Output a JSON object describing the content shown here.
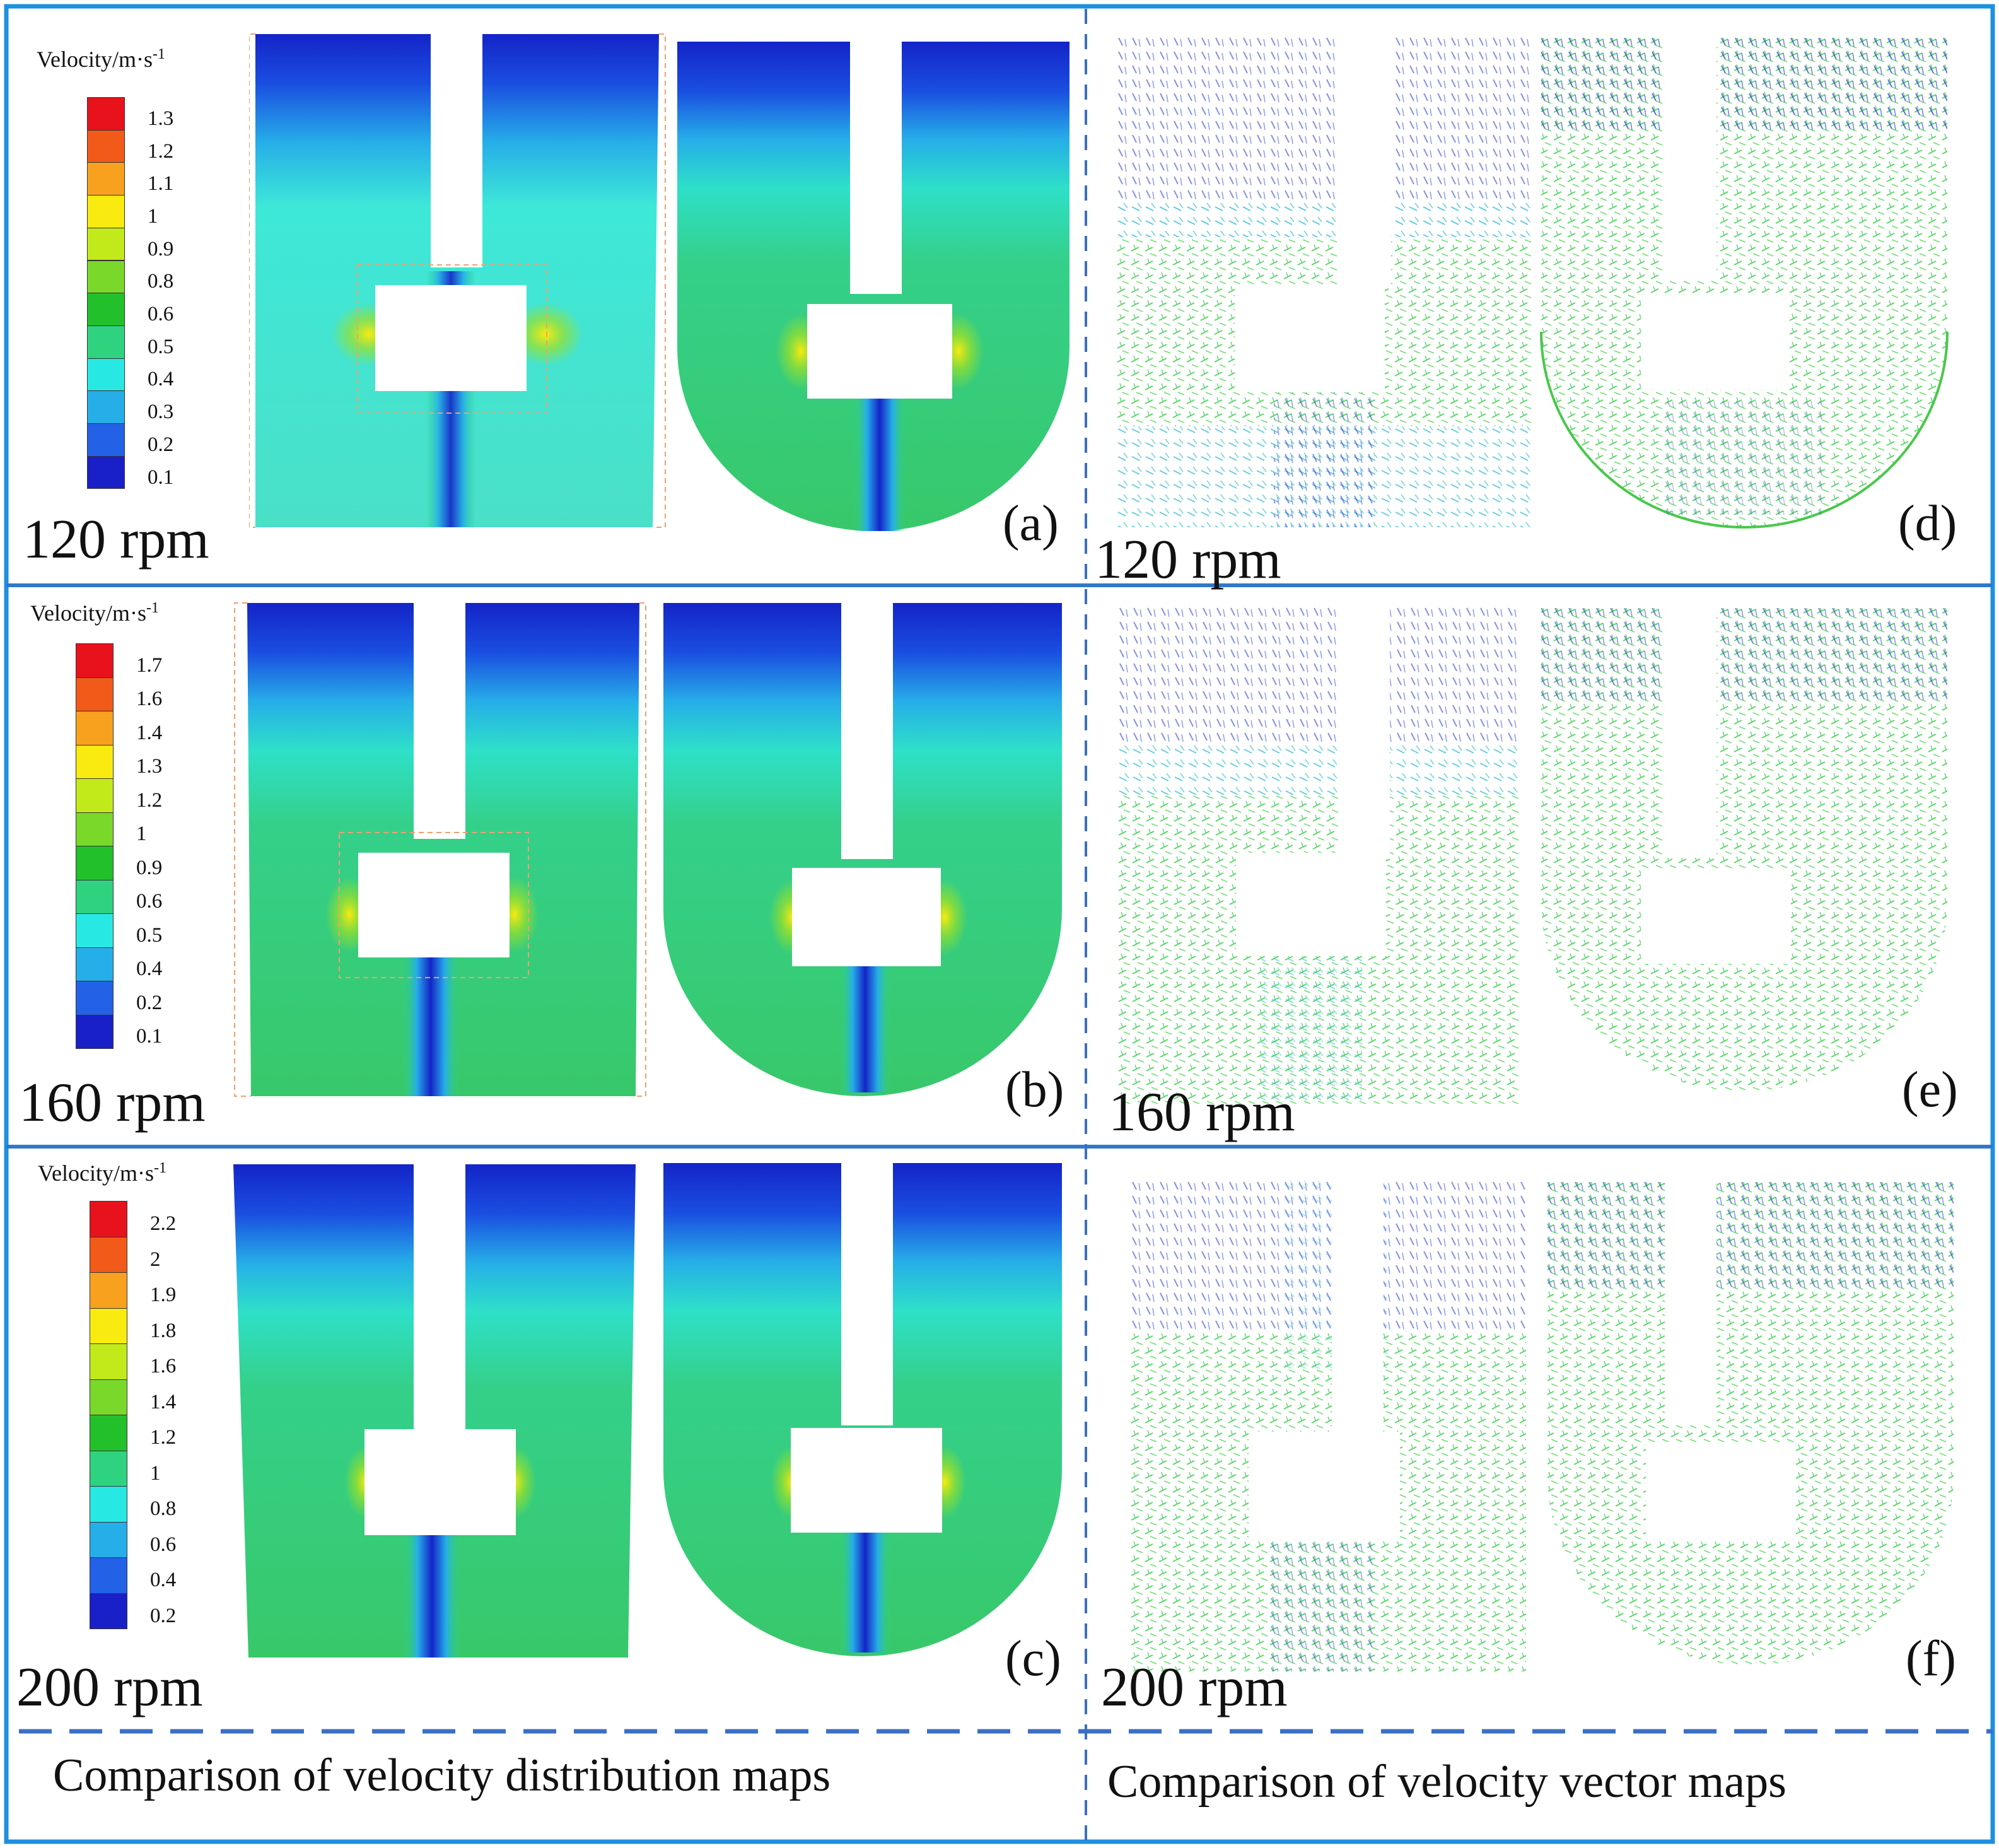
{
  "rows": [
    {
      "rpm_label": "120 rpm",
      "distribution_letter": "(a)",
      "vector_letter": "(d)",
      "vector_rpm_label": "120 rpm",
      "legend": {
        "title": "Velocity/m·s",
        "title_exp": "-1",
        "ticks": [
          "1.3",
          "1.2",
          "1.1",
          "1",
          "0.9",
          "0.8",
          "0.6",
          "0.5",
          "0.4",
          "0.3",
          "0.2",
          "0.1"
        ]
      }
    },
    {
      "rpm_label": "160 rpm",
      "distribution_letter": "(b)",
      "vector_letter": "(e)",
      "vector_rpm_label": "160 rpm",
      "legend": {
        "title": "Velocity/m·s",
        "title_exp": "-1",
        "ticks": [
          "1.7",
          "1.6",
          "1.4",
          "1.3",
          "1.2",
          "1",
          "0.9",
          "0.6",
          "0.5",
          "0.4",
          "0.2",
          "0.1"
        ]
      }
    },
    {
      "rpm_label": "200 rpm",
      "distribution_letter": "(c)",
      "vector_letter": "(f)",
      "vector_rpm_label": "200 rpm",
      "legend": {
        "title": "Velocity/m·s",
        "title_exp": "-1",
        "ticks": [
          "2.2",
          "2",
          "1.9",
          "1.8",
          "1.6",
          "1.4",
          "1.2",
          "1",
          "0.8",
          "0.6",
          "0.4",
          "0.2"
        ]
      }
    }
  ],
  "legend_colors": [
    "#e8121c",
    "#f25a1a",
    "#f7a11e",
    "#f9ea10",
    "#c2ea1a",
    "#7ad82a",
    "#22c02a",
    "#2fd37f",
    "#27e8e3",
    "#26aee8",
    "#2362e6",
    "#1a20c8"
  ],
  "captions": {
    "left": "Comparison of velocity distribution maps",
    "right": "Comparison of velocity vector maps"
  },
  "colors": {
    "frame": "#1e90e0",
    "divider": "#3b6fc4",
    "low_velocity": "#1a20c8",
    "mid_velocity": "#27e8e3",
    "high_velocity": "#22c02a"
  }
}
